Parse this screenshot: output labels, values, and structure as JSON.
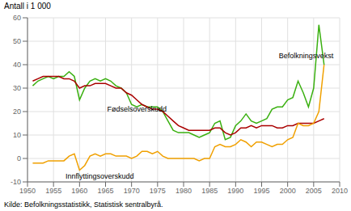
{
  "chart_data": {
    "type": "line",
    "ylabel": "Antall i 1 000",
    "source": "Kilde: Befolkningsstatistikk, Statistisk sentralbyrå.",
    "x": [
      1951,
      1952,
      1953,
      1954,
      1955,
      1956,
      1957,
      1958,
      1959,
      1960,
      1961,
      1962,
      1963,
      1964,
      1965,
      1966,
      1967,
      1968,
      1969,
      1970,
      1971,
      1972,
      1973,
      1974,
      1975,
      1976,
      1977,
      1978,
      1979,
      1980,
      1981,
      1982,
      1983,
      1984,
      1985,
      1986,
      1987,
      1988,
      1989,
      1990,
      1991,
      1992,
      1993,
      1994,
      1995,
      1996,
      1997,
      1998,
      1999,
      2000,
      2001,
      2002,
      2003,
      2004,
      2005,
      2006,
      2007
    ],
    "series": [
      {
        "name": "Befolkningsvekst",
        "color": "#3ab010",
        "values": [
          31,
          33,
          34,
          35,
          34,
          35,
          35,
          37,
          35,
          25,
          30,
          33,
          34,
          33,
          34,
          33,
          31,
          30,
          28,
          23,
          22,
          23,
          22,
          22,
          22,
          20,
          16,
          12,
          11,
          11,
          11,
          10,
          9,
          10,
          11,
          15,
          16,
          8,
          9,
          14,
          16,
          19,
          16,
          15,
          16,
          17,
          21,
          22,
          22,
          25,
          26,
          33,
          28,
          22,
          30,
          57,
          40
        ]
      },
      {
        "name": "Fødselsoverskudd",
        "color": "#aa0000",
        "values": [
          33,
          34,
          35,
          35,
          35,
          35,
          34,
          34,
          33,
          30,
          31,
          31,
          32,
          32,
          32,
          31,
          30,
          30,
          28,
          27,
          25,
          23,
          22,
          21,
          21,
          20,
          18,
          16,
          14,
          13,
          12,
          12,
          12,
          12,
          12,
          13,
          13,
          11,
          10,
          11,
          13,
          13,
          14,
          13,
          14,
          14,
          14,
          13,
          13,
          14,
          14,
          15,
          15,
          15,
          15,
          16,
          17
        ]
      },
      {
        "name": "Innflyttingsoverskudd",
        "color": "#f0a000",
        "values": [
          -2,
          -2,
          -2,
          -1,
          -1,
          -1,
          -1,
          1,
          2,
          -5,
          -3,
          1,
          2,
          1,
          2,
          2,
          1,
          1,
          1,
          0,
          1,
          3,
          3,
          2,
          3,
          1,
          0,
          0,
          0,
          0,
          0,
          0,
          -1,
          0,
          0,
          5,
          6,
          5,
          5,
          6,
          8,
          7,
          5,
          7,
          7,
          6,
          5,
          6,
          6,
          8,
          9,
          15,
          14,
          14,
          15,
          20,
          40
        ]
      }
    ],
    "annotations": [
      {
        "text": "Befolkningsvekst",
        "x": 1998,
        "y": 44
      },
      {
        "text": "Fødselsoverskudd",
        "x": 1965,
        "y": 21
      },
      {
        "text": "Innflyttingsoverskudd",
        "x": 1957,
        "y": -7.5
      }
    ],
    "xlim": [
      1950,
      2010
    ],
    "xticks": [
      1950,
      1955,
      1960,
      1965,
      1970,
      1975,
      1980,
      1985,
      1990,
      1995,
      2000,
      2005,
      2010
    ],
    "ylim": [
      -10,
      60
    ],
    "yticks": [
      -10,
      0,
      10,
      20,
      30,
      40,
      50,
      60
    ],
    "grid": true
  }
}
